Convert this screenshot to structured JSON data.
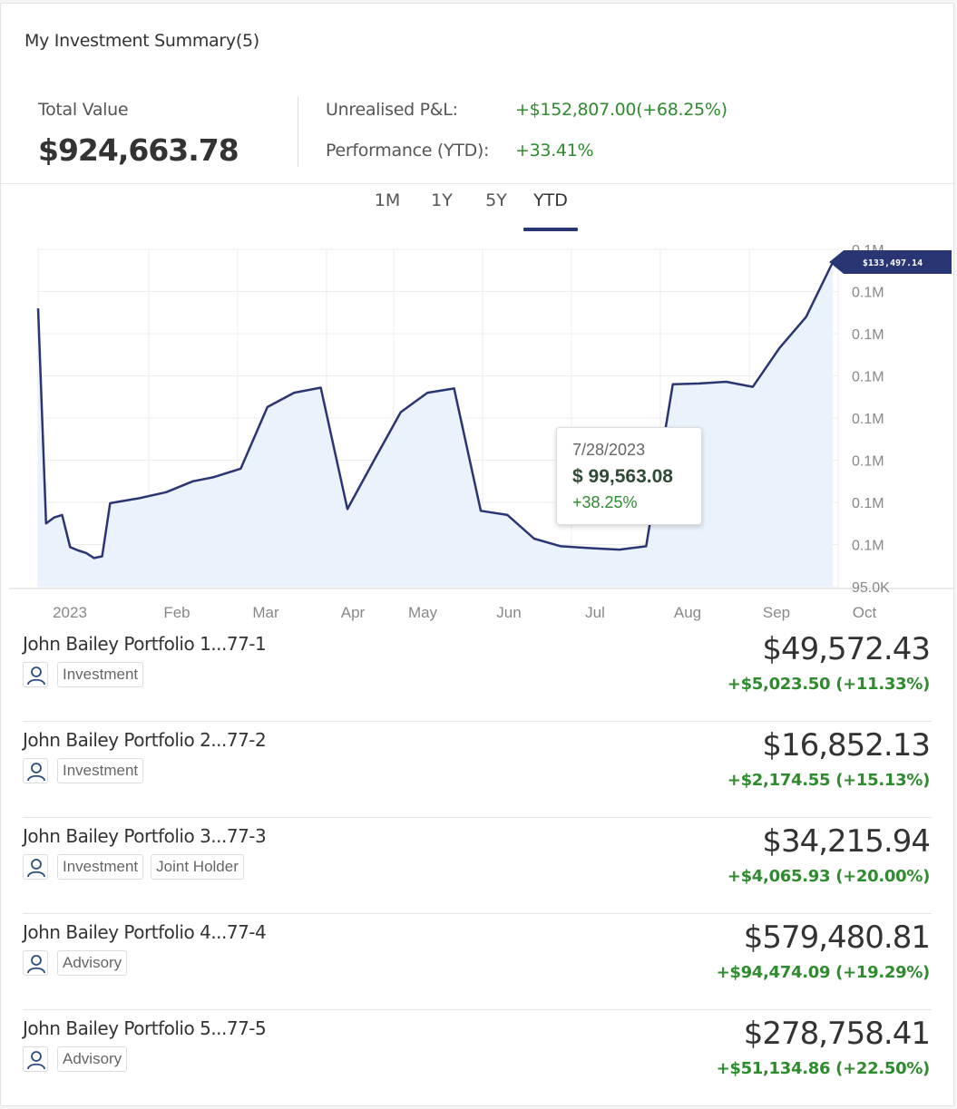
{
  "summary": {
    "title": "My Investment Summary(5)",
    "total_value_label": "Total Value",
    "total_value": "$924,663.78",
    "unrealised_label": "Unrealised P&L:",
    "unrealised_value": "+$152,807.00(+68.25%)",
    "performance_label": "Performance (YTD):",
    "performance_value": "+33.41%"
  },
  "tabs": [
    {
      "label": "1M",
      "active": false
    },
    {
      "label": "1Y",
      "active": false
    },
    {
      "label": "5Y",
      "active": false
    },
    {
      "label": "YTD",
      "active": true
    }
  ],
  "chart_data": {
    "type": "area",
    "title": "",
    "xlabel": "",
    "ylabel": "",
    "x_tick_labels": [
      "2023",
      "Feb",
      "Mar",
      "Apr",
      "May",
      "Jun",
      "Jul",
      "Aug",
      "Sep",
      "Oct"
    ],
    "y_tick_labels": [
      "0.1M",
      "0.1M",
      "0.1M",
      "0.1M",
      "0.1M",
      "0.1M",
      "0.1M",
      "0.1M",
      "95.0K"
    ],
    "ylim": [
      95000,
      135000
    ],
    "grid": true,
    "series": [
      {
        "values": [
          {
            "x": "2023-01-01",
            "y": 128000
          },
          {
            "x": "2023-01-04",
            "y": 102500
          },
          {
            "x": "2023-01-07",
            "y": 103200
          },
          {
            "x": "2023-01-10",
            "y": 103500
          },
          {
            "x": "2023-01-13",
            "y": 99700
          },
          {
            "x": "2023-01-16",
            "y": 99300
          },
          {
            "x": "2023-01-19",
            "y": 99000
          },
          {
            "x": "2023-01-22",
            "y": 98400
          },
          {
            "x": "2023-01-25",
            "y": 98600
          },
          {
            "x": "2023-01-28",
            "y": 104900
          },
          {
            "x": "2023-02-08",
            "y": 105500
          },
          {
            "x": "2023-02-18",
            "y": 106200
          },
          {
            "x": "2023-02-28",
            "y": 107500
          },
          {
            "x": "2023-03-08",
            "y": 108000
          },
          {
            "x": "2023-03-18",
            "y": 109000
          },
          {
            "x": "2023-03-28",
            "y": 116300
          },
          {
            "x": "2023-04-07",
            "y": 118000
          },
          {
            "x": "2023-04-17",
            "y": 118600
          },
          {
            "x": "2023-04-27",
            "y": 104200
          },
          {
            "x": "2023-05-07",
            "y": 110000
          },
          {
            "x": "2023-05-17",
            "y": 115700
          },
          {
            "x": "2023-05-27",
            "y": 118000
          },
          {
            "x": "2023-06-06",
            "y": 118500
          },
          {
            "x": "2023-06-16",
            "y": 104000
          },
          {
            "x": "2023-06-26",
            "y": 103500
          },
          {
            "x": "2023-07-06",
            "y": 100700
          },
          {
            "x": "2023-07-16",
            "y": 99800
          },
          {
            "x": "2023-07-28",
            "y": 99563.08
          },
          {
            "x": "2023-08-07",
            "y": 99400
          },
          {
            "x": "2023-08-17",
            "y": 99800
          },
          {
            "x": "2023-08-27",
            "y": 119000
          },
          {
            "x": "2023-09-06",
            "y": 119100
          },
          {
            "x": "2023-09-16",
            "y": 119300
          },
          {
            "x": "2023-09-26",
            "y": 118700
          },
          {
            "x": "2023-10-06",
            "y": 123300
          },
          {
            "x": "2023-10-16",
            "y": 127000
          },
          {
            "x": "2023-10-26",
            "y": 133497.14
          }
        ]
      }
    ],
    "last_value_label": "$133,497.14",
    "tooltip": {
      "date": "7/28/2023",
      "value": "$ 99,563.08",
      "change": "+38.25%"
    },
    "colors": {
      "line": "#2a3573",
      "area": "#eaf2fb",
      "badge": "#2a3573"
    }
  },
  "portfolios": [
    {
      "name": "John Bailey Portfolio 1...77-1",
      "tags": [
        "Investment"
      ],
      "value": "$49,572.43",
      "change": "+$5,023.50 (+11.33%)"
    },
    {
      "name": "John Bailey Portfolio 2...77-2",
      "tags": [
        "Investment"
      ],
      "value": "$16,852.13",
      "change": "+$2,174.55 (+15.13%)"
    },
    {
      "name": "John Bailey Portfolio 3...77-3",
      "tags": [
        "Investment",
        "Joint Holder"
      ],
      "value": "$34,215.94",
      "change": "+$4,065.93 (+20.00%)"
    },
    {
      "name": "John Bailey Portfolio 4...77-4",
      "tags": [
        "Advisory"
      ],
      "value": "$579,480.81",
      "change": "+$94,474.09 (+19.29%)"
    },
    {
      "name": "John Bailey Portfolio 5...77-5",
      "tags": [
        "Advisory"
      ],
      "value": "$278,758.41",
      "change": "+$51,134.86 (+22.50%)"
    }
  ],
  "icons": {
    "avatar": "person-icon"
  }
}
